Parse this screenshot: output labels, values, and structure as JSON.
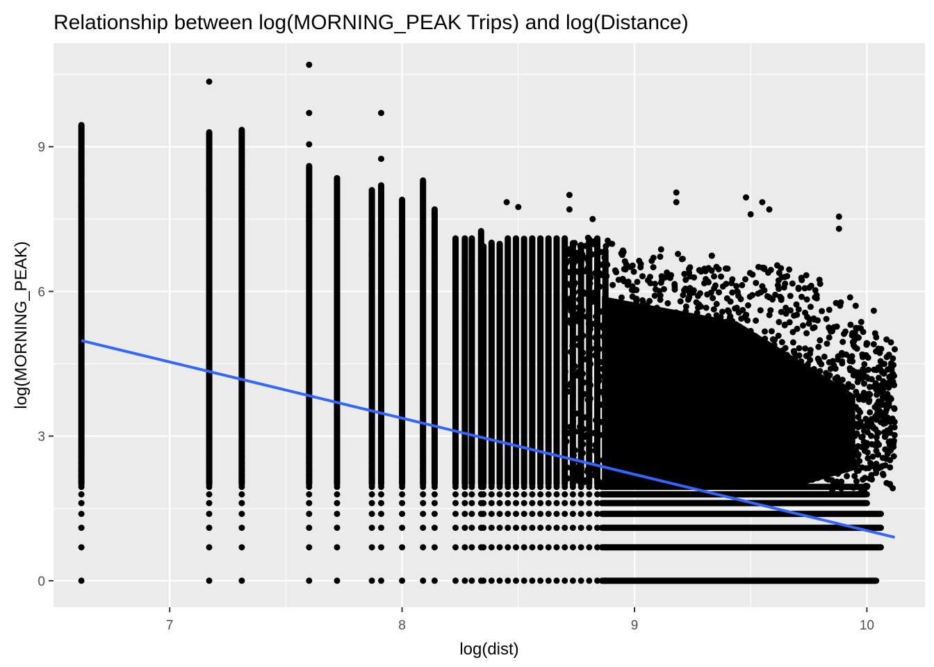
{
  "chart_data": {
    "type": "scatter",
    "title": "Relationship between log(MORNING_PEAK Trips) and log(Distance)",
    "xlabel": "log(dist)",
    "ylabel": "log(MORNING_PEAK)",
    "xlim": [
      6.5,
      10.25
    ],
    "ylim": [
      -0.55,
      11.15
    ],
    "x_ticks": [
      7,
      8,
      9,
      10
    ],
    "y_ticks": [
      0,
      3,
      6,
      9
    ],
    "x_tick_labels": [
      "7",
      "8",
      "9",
      "10"
    ],
    "y_tick_labels": [
      "0",
      "3",
      "6",
      "9"
    ],
    "grid": true,
    "legend": "none",
    "colors": {
      "panel_background": "#ebebeb",
      "grid": "#ffffff",
      "points": "#000000",
      "trend_line": "#3366ff"
    },
    "discrete_columns": [
      {
        "x": 6.62,
        "ymin": 0,
        "ymax": 9.45
      },
      {
        "x": 7.17,
        "ymin": 0,
        "ymax": 9.3
      },
      {
        "x": 7.31,
        "ymin": 0,
        "ymax": 9.35
      },
      {
        "x": 7.6,
        "ymin": 0,
        "ymax": 8.6
      },
      {
        "x": 7.72,
        "ymin": 0,
        "ymax": 8.35
      },
      {
        "x": 7.87,
        "ymin": 0,
        "ymax": 8.1
      },
      {
        "x": 7.91,
        "ymin": 0,
        "ymax": 8.2
      },
      {
        "x": 8.0,
        "ymin": 0,
        "ymax": 7.9
      },
      {
        "x": 8.09,
        "ymin": 0,
        "ymax": 8.3
      },
      {
        "x": 8.14,
        "ymin": 0,
        "ymax": 7.7
      },
      {
        "x": 8.23,
        "ymin": 0,
        "ymax": 7.1
      },
      {
        "x": 8.27,
        "ymin": 0,
        "ymax": 7.1
      },
      {
        "x": 8.3,
        "ymin": 0,
        "ymax": 7.1
      },
      {
        "x": 8.34,
        "ymin": 0,
        "ymax": 7.25
      }
    ],
    "outliers": [
      {
        "x": 7.17,
        "y": 10.35
      },
      {
        "x": 7.6,
        "y": 10.7
      },
      {
        "x": 7.6,
        "y": 9.7
      },
      {
        "x": 7.6,
        "y": 9.05
      },
      {
        "x": 7.91,
        "y": 9.7
      },
      {
        "x": 7.91,
        "y": 8.75
      },
      {
        "x": 8.09,
        "y": 7.95
      },
      {
        "x": 8.45,
        "y": 7.85
      },
      {
        "x": 8.5,
        "y": 7.75
      },
      {
        "x": 8.72,
        "y": 8.0
      },
      {
        "x": 8.72,
        "y": 7.7
      },
      {
        "x": 8.82,
        "y": 7.5
      },
      {
        "x": 9.18,
        "y": 8.05
      },
      {
        "x": 9.18,
        "y": 7.85
      },
      {
        "x": 9.48,
        "y": 7.95
      },
      {
        "x": 9.5,
        "y": 7.6
      },
      {
        "x": 9.55,
        "y": 7.85
      },
      {
        "x": 9.58,
        "y": 7.7
      },
      {
        "x": 9.88,
        "y": 7.55
      },
      {
        "x": 9.88,
        "y": 7.3
      },
      {
        "x": 10.03,
        "y": 5.6
      },
      {
        "x": 10.04,
        "y": 5.05
      },
      {
        "x": 10.12,
        "y": 4.8
      },
      {
        "x": 10.05,
        "y": 3.95
      },
      {
        "x": 10.08,
        "y": 3.0
      },
      {
        "x": 10.1,
        "y": 2.5
      }
    ],
    "dense_cloud": {
      "xmin": 8.35,
      "xmax": 10.12,
      "ymin": 0.69,
      "ymax": 7.4
    },
    "trend_line": {
      "x": [
        6.62,
        10.12
      ],
      "y": [
        4.98,
        0.9
      ]
    }
  }
}
